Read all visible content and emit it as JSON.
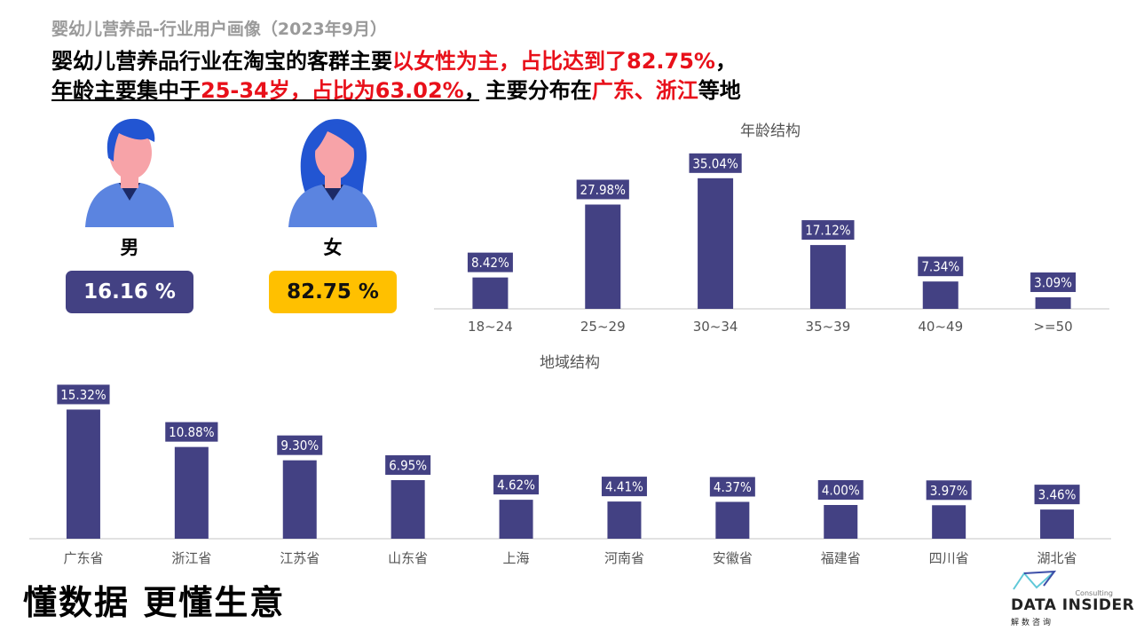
{
  "header": {
    "subtitle": "婴幼儿营养品-行业用户画像（2023年9月）",
    "line1_prefix": "婴幼儿营养品行业在淘宝的客群主要",
    "line1_highlight": "以女性为主，占比达到了82.75%",
    "line1_suffix": "，",
    "line2_prefix": "年龄主要集中于",
    "line2_highlight": "25-34岁，占比为63.02%",
    "line2_mid": "，主要分布在",
    "line2_highlight2": "广东、浙江",
    "line2_suffix": "等地"
  },
  "gender": {
    "male": {
      "label": "男",
      "value": "16.16 %",
      "color": "#434183"
    },
    "female": {
      "label": "女",
      "value": "82.75 %",
      "color": "#ffc000"
    }
  },
  "chart_data": [
    {
      "type": "bar",
      "title": "年龄结构",
      "categories": [
        "18~24",
        "25~29",
        "30~34",
        "35~39",
        "40~49",
        ">=50"
      ],
      "values": [
        8.42,
        27.98,
        35.04,
        17.12,
        7.34,
        3.09
      ],
      "labels": [
        "8.42%",
        "27.98%",
        "35.04%",
        "17.12%",
        "7.34%",
        "3.09%"
      ],
      "color": "#434183",
      "ylim": [
        0,
        40
      ]
    },
    {
      "type": "bar",
      "title": "地域结构",
      "categories": [
        "广东省",
        "浙江省",
        "江苏省",
        "山东省",
        "上海",
        "河南省",
        "安徽省",
        "福建省",
        "四川省",
        "湖北省"
      ],
      "values": [
        15.32,
        10.88,
        9.3,
        6.95,
        4.62,
        4.41,
        4.37,
        4.0,
        3.97,
        3.46
      ],
      "labels": [
        "15.32%",
        "10.88%",
        "9.30%",
        "6.95%",
        "4.62%",
        "4.41%",
        "4.37%",
        "4.00%",
        "3.97%",
        "3.46%"
      ],
      "color": "#434183",
      "ylim": [
        0,
        16
      ]
    }
  ],
  "footer": {
    "slogan": "懂数据 更懂生意",
    "logo_consulting": "Consulting",
    "logo_main": "DATA INSIDER",
    "logo_cn": "解数咨询"
  }
}
